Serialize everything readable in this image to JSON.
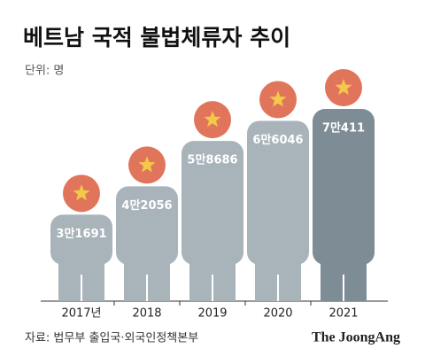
{
  "chart_data": {
    "type": "pictogram",
    "title": "베트남 국적 불법체류자 추이",
    "unit": "단위: 명",
    "categories": [
      "2017년",
      "2018",
      "2019",
      "2020",
      "2021"
    ],
    "values": [
      31691,
      42056,
      58686,
      66046,
      70411
    ],
    "value_labels": [
      "3만1691",
      "4만2056",
      "5만8686",
      "6만6046",
      "7만411"
    ],
    "colors": [
      "#a9b3ba",
      "#a9b3ba",
      "#a9b3ba",
      "#a9b3ba",
      "#7e8c95"
    ],
    "source": "자료: 법무부 출입국·외국인정책본부",
    "publisher": "The JoongAng"
  }
}
